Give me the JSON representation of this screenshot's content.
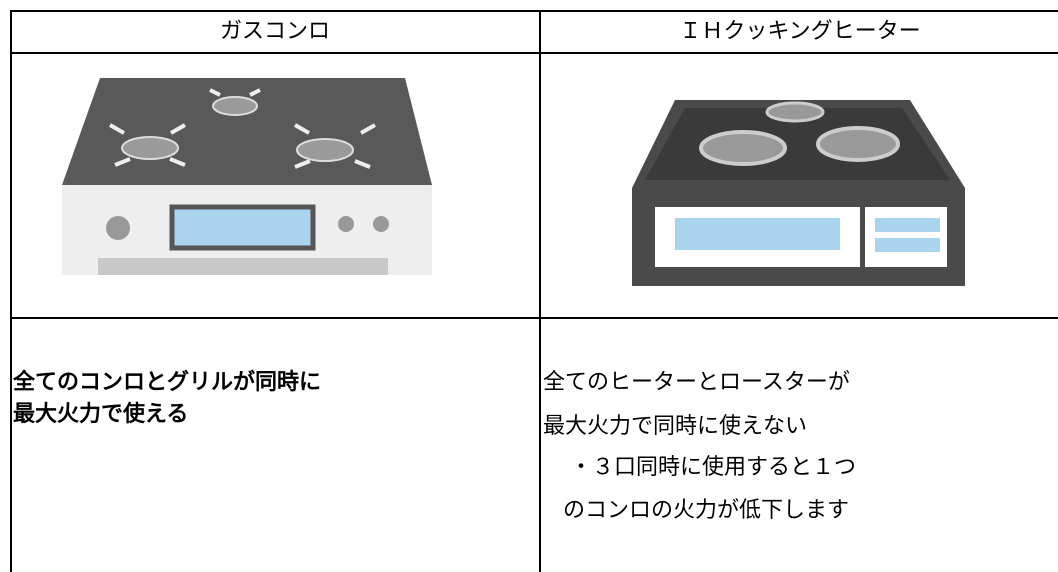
{
  "table": {
    "header": [
      "ガスコンロ",
      "ＩＨクッキングヒーター"
    ],
    "rows": [
      [
        [
          "全てのコンロとグリルが同時に",
          "最大火力で使える"
        ],
        [
          "全てのヒーターとロースターが",
          "最大火力で同時に使えない",
          "・３口同時に使用すると１つ",
          "のコンロの火力が低下します"
        ]
      ]
    ]
  }
}
